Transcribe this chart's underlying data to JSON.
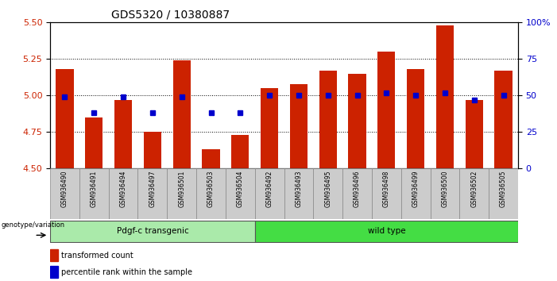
{
  "title": "GDS5320 / 10380887",
  "samples": [
    "GSM936490",
    "GSM936491",
    "GSM936494",
    "GSM936497",
    "GSM936501",
    "GSM936503",
    "GSM936504",
    "GSM936492",
    "GSM936493",
    "GSM936495",
    "GSM936496",
    "GSM936498",
    "GSM936499",
    "GSM936500",
    "GSM936502",
    "GSM936505"
  ],
  "transformed_count": [
    5.18,
    4.85,
    4.97,
    4.75,
    5.24,
    4.63,
    4.73,
    5.05,
    5.08,
    5.17,
    5.15,
    5.3,
    5.18,
    5.48,
    4.97,
    5.17
  ],
  "percentile_rank": [
    49,
    38,
    49,
    38,
    49,
    38,
    38,
    50,
    50,
    50,
    50,
    52,
    50,
    52,
    47,
    50
  ],
  "group1_label": "Pdgf-c transgenic",
  "group1_count": 7,
  "group2_label": "wild type",
  "group2_count": 9,
  "ylim_left": [
    4.5,
    5.5
  ],
  "ylim_right": [
    0,
    100
  ],
  "yticks_left": [
    4.5,
    4.75,
    5.0,
    5.25,
    5.5
  ],
  "yticks_right": [
    0,
    25,
    50,
    75,
    100
  ],
  "bar_color": "#CC2200",
  "dot_color": "#0000CC",
  "bg_color": "#FFFFFF",
  "plot_bg": "#FFFFFF",
  "left_tick_color": "#CC2200",
  "right_tick_color": "#0000CC",
  "grid_color": "#000000",
  "group1_bg": "#AAEAAA",
  "group2_bg": "#44DD44",
  "label_color_left": "#CC2200",
  "label_color_right": "#0000CC"
}
